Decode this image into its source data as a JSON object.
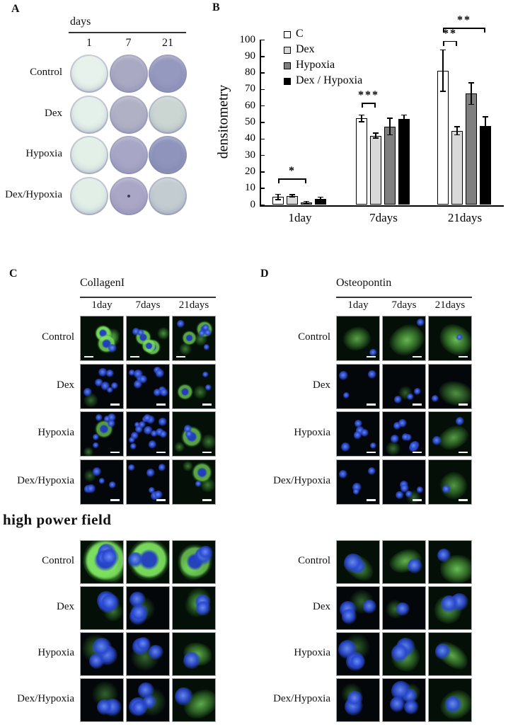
{
  "figure": {
    "panelA": {
      "label": "A",
      "title": "days",
      "columns": [
        "1",
        "7",
        "21"
      ],
      "rows": [
        "Control",
        "Dex",
        "Hypoxia",
        "Dex/Hypoxia"
      ],
      "well_colors": [
        [
          "#e7f2ec",
          "#a9a9c3",
          "#9598bf"
        ],
        [
          "#e4f0ea",
          "#b1b1c6",
          "#cbd6d2"
        ],
        [
          "#e3f0e8",
          "#a7a6c6",
          "#8e94bb"
        ],
        [
          "#e2efe7",
          "#aaa6c6",
          "#c3cdd1"
        ]
      ],
      "center_dot": {
        "row": 3,
        "col": 1
      }
    },
    "panelB": {
      "label": "B"
    },
    "panelC": {
      "label": "C",
      "title": "CollagenI",
      "columns": [
        "1day",
        "7days",
        "21days"
      ],
      "rows": [
        "Control",
        "Dex",
        "Hypoxia",
        "Dex/Hypoxia"
      ],
      "scalebar_position_by_row": [
        "bl",
        "br",
        "br",
        "br"
      ],
      "cells": [
        [
          {
            "n": 1,
            "r": 3,
            "g": 0.55
          },
          {
            "n": 2,
            "r": 3,
            "g": 0.55
          },
          {
            "n": 5,
            "r": 2,
            "g": 0.35
          }
        ],
        [
          {
            "n": 7,
            "r": 0,
            "g": 0.22
          },
          {
            "n": 10,
            "r": 0,
            "g": 0.1
          },
          {
            "n": 2,
            "r": 1,
            "g": 0.3
          }
        ],
        [
          {
            "n": 6,
            "r": 1,
            "g": 0.28
          },
          {
            "n": 15,
            "r": 0,
            "g": 0.06
          },
          {
            "n": 2,
            "r": 1,
            "g": 0.32
          }
        ],
        [
          {
            "n": 5,
            "r": 0,
            "g": 0.18
          },
          {
            "n": 6,
            "r": 0,
            "g": 0.06
          },
          {
            "n": 1,
            "r": 1,
            "g": 0.35
          }
        ]
      ]
    },
    "panelD": {
      "label": "D",
      "title": "Osteopontin",
      "columns": [
        "1day",
        "7days",
        "21days"
      ],
      "rows": [
        "Control",
        "Dex",
        "Hypoxia",
        "Dex/Hypoxia"
      ],
      "scalebar_position_by_row": [
        "br",
        "br",
        "br",
        "br"
      ],
      "cells": [
        [
          {
            "n": 1,
            "s": 1,
            "g": 0.4
          },
          {
            "n": 1,
            "s": 1,
            "g": 0.65
          },
          {
            "n": 1,
            "s": 1,
            "g": 0.7
          }
        ],
        [
          {
            "n": 3,
            "g": 0.1
          },
          {
            "n": 3,
            "g": 0.18
          },
          {
            "n": 1,
            "s": 1,
            "g": 0.25
          }
        ],
        [
          {
            "n": 6,
            "g": 0.1
          },
          {
            "n": 8,
            "g": 0.28
          },
          {
            "n": 2,
            "s": 1,
            "g": 0.35
          }
        ],
        [
          {
            "n": 4,
            "g": 0.1
          },
          {
            "n": 5,
            "g": 0.18
          },
          {
            "n": 1,
            "s": 1,
            "g": 0.3
          }
        ]
      ]
    },
    "high_power_label": "high power field",
    "panelC_high_power": {
      "rows": [
        "Control",
        "Dex",
        "Hypoxia",
        "Dex/Hypoxia"
      ],
      "cells": [
        [
          {
            "n": 3,
            "r": 2,
            "g": 0.75
          },
          {
            "n": 1,
            "r": 1,
            "g": 0.85
          },
          {
            "n": 2,
            "r": 1,
            "g": 0.45
          }
        ],
        [
          {
            "n": 3,
            "g": 0.3
          },
          {
            "n": 3,
            "g": 0.2
          },
          {
            "n": 2,
            "g": 0.4
          }
        ],
        [
          {
            "n": 3,
            "g": 0.28
          },
          {
            "n": 3,
            "g": 0.22
          },
          {
            "n": 1,
            "s": 1,
            "g": 0.55
          }
        ],
        [
          {
            "n": 2,
            "g": 0.18
          },
          {
            "n": 4,
            "g": 0.15
          },
          {
            "n": 1,
            "s": 1,
            "g": 0.5
          }
        ]
      ]
    },
    "panelD_high_power": {
      "rows": [
        "Control",
        "Dex",
        "Hypoxia",
        "Dex/Hypoxia"
      ],
      "cells": [
        [
          {
            "n": 2,
            "s": 1,
            "g": 0.3
          },
          {
            "n": 1,
            "s": 1,
            "g": 0.6
          },
          {
            "n": 1,
            "s": 1,
            "g": 0.7
          }
        ],
        [
          {
            "n": 3,
            "g": 0.18
          },
          {
            "n": 1,
            "g": 0.25
          },
          {
            "n": 2,
            "s": 1,
            "g": 0.38
          }
        ],
        [
          {
            "n": 3,
            "g": 0.14
          },
          {
            "n": 2,
            "s": 1,
            "g": 0.4
          },
          {
            "n": 1,
            "s": 1,
            "g": 0.5
          }
        ],
        [
          {
            "n": 2,
            "g": 0.14
          },
          {
            "n": 4,
            "g": 0.22
          },
          {
            "n": 1,
            "s": 1,
            "g": 0.4
          }
        ]
      ]
    }
  },
  "chart_data": {
    "type": "bar",
    "title": "",
    "xlabel": "",
    "ylabel": "densitometry",
    "ylim": [
      0,
      100
    ],
    "yticks": [
      0,
      10,
      20,
      30,
      40,
      50,
      60,
      70,
      80,
      90,
      100
    ],
    "grid": false,
    "legend_position": "top-left-inside",
    "categories": [
      "1day",
      "7days",
      "21days"
    ],
    "series": [
      {
        "name": "C",
        "color": "#ffffff",
        "values": [
          4.8,
          52.5,
          81.5
        ],
        "errors": [
          1.6,
          2.0,
          12.5
        ]
      },
      {
        "name": "Dex",
        "color": "#d9d9d9",
        "values": [
          5.5,
          42.0,
          45.0
        ],
        "errors": [
          0.6,
          1.5,
          2.5
        ]
      },
      {
        "name": "Hypoxia",
        "color": "#7f7f7f",
        "values": [
          1.6,
          47.5,
          67.5
        ],
        "errors": [
          0.5,
          5.0,
          6.5
        ]
      },
      {
        "name": "Dex / Hypoxia",
        "color": "#000000",
        "values": [
          3.6,
          52.0,
          48.0
        ],
        "errors": [
          1.2,
          2.5,
          5.5
        ]
      }
    ],
    "significance": [
      {
        "category": 0,
        "from_series": 0,
        "to_series": 2,
        "label": "*",
        "y_value": 16
      },
      {
        "category": 1,
        "from_series": 0,
        "to_series": 1,
        "label": "***",
        "y_value": 62
      },
      {
        "category": 2,
        "from_series": 0,
        "to_series": 1,
        "label": "**",
        "y_value": 99.5
      },
      {
        "category": 2,
        "from_series": 0,
        "to_series": 3,
        "label": "**",
        "y_value": 107.5
      }
    ]
  }
}
